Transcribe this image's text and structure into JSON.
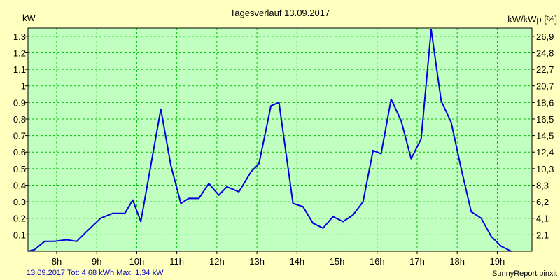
{
  "chart_data": {
    "type": "line",
    "title": "Tagesverlauf 13.09.2017",
    "ylabel": "kW",
    "ylabel_right": "kW/kWp [%]",
    "xlim": [
      7.2833,
      19.8667
    ],
    "ylim": [
      0,
      1.35
    ],
    "x_ticks": [
      {
        "label": "8h",
        "value": 8
      },
      {
        "label": "9h",
        "value": 9
      },
      {
        "label": "10h",
        "value": 10
      },
      {
        "label": "11h",
        "value": 11
      },
      {
        "label": "12h",
        "value": 12
      },
      {
        "label": "13h",
        "value": 13
      },
      {
        "label": "14h",
        "value": 14
      },
      {
        "label": "15h",
        "value": 15
      },
      {
        "label": "16h",
        "value": 16
      },
      {
        "label": "17h",
        "value": 17
      },
      {
        "label": "18h",
        "value": 18
      },
      {
        "label": "19h",
        "value": 19
      }
    ],
    "y_ticks_left": [
      {
        "label": "0.1",
        "value": 0.1
      },
      {
        "label": "0.2",
        "value": 0.2
      },
      {
        "label": "0.3",
        "value": 0.3
      },
      {
        "label": "0.4",
        "value": 0.4
      },
      {
        "label": "0.5",
        "value": 0.5
      },
      {
        "label": "0.6",
        "value": 0.6
      },
      {
        "label": "0.7",
        "value": 0.7
      },
      {
        "label": "0.8",
        "value": 0.8
      },
      {
        "label": "0.9",
        "value": 0.9
      },
      {
        "label": "1",
        "value": 1.0
      },
      {
        "label": "1.1",
        "value": 1.1
      },
      {
        "label": "1.2",
        "value": 1.2
      },
      {
        "label": "1.3",
        "value": 1.3
      }
    ],
    "y_ticks_right": [
      {
        "label": "2,1",
        "value": 0.1
      },
      {
        "label": "4,1",
        "value": 0.2
      },
      {
        "label": "6,2",
        "value": 0.3
      },
      {
        "label": "8,3",
        "value": 0.4
      },
      {
        "label": "10,3",
        "value": 0.5
      },
      {
        "label": "12,4",
        "value": 0.6
      },
      {
        "label": "14,5",
        "value": 0.7
      },
      {
        "label": "16,5",
        "value": 0.8
      },
      {
        "label": "18,6",
        "value": 0.9
      },
      {
        "label": "20,7",
        "value": 1.0
      },
      {
        "label": "22,7",
        "value": 1.1
      },
      {
        "label": "24,8",
        "value": 1.2
      },
      {
        "label": "26,9",
        "value": 1.3
      }
    ],
    "grid": true,
    "series": [
      {
        "x": [
          7.3,
          7.45,
          7.7,
          7.95,
          8.25,
          8.5,
          8.75,
          9.1,
          9.4,
          9.7,
          9.9,
          10.1,
          10.35,
          10.6,
          10.85,
          11.1,
          11.3,
          11.55,
          11.8,
          12.05,
          12.25,
          12.55,
          12.85,
          13.05,
          13.35,
          13.55,
          13.9,
          14.15,
          14.4,
          14.65,
          14.9,
          15.15,
          15.4,
          15.65,
          15.9,
          16.1,
          16.35,
          16.6,
          16.85,
          17.1,
          17.35,
          17.6,
          17.85,
          18.1,
          18.35,
          18.6,
          18.85,
          19.1,
          19.35
        ],
        "values": [
          0.0,
          0.01,
          0.06,
          0.06,
          0.07,
          0.06,
          0.12,
          0.2,
          0.23,
          0.23,
          0.31,
          0.18,
          0.52,
          0.86,
          0.52,
          0.29,
          0.32,
          0.32,
          0.41,
          0.34,
          0.39,
          0.36,
          0.48,
          0.53,
          0.88,
          0.9,
          0.29,
          0.27,
          0.17,
          0.14,
          0.21,
          0.18,
          0.22,
          0.3,
          0.61,
          0.59,
          0.92,
          0.79,
          0.56,
          0.68,
          1.34,
          0.91,
          0.78,
          0.5,
          0.24,
          0.2,
          0.09,
          0.03,
          0.0
        ]
      }
    ],
    "colors": {
      "background": "#FFFFC0",
      "plot_background": "#C0FFC0",
      "grid": "#00C000",
      "line": "#0000E0",
      "footer_text": "#0000C0"
    }
  },
  "footer": {
    "summary": "13.09.2017 Tot: 4,68 kWh Max: 1,34 kW",
    "brand": "SunnyReport pinxit"
  }
}
